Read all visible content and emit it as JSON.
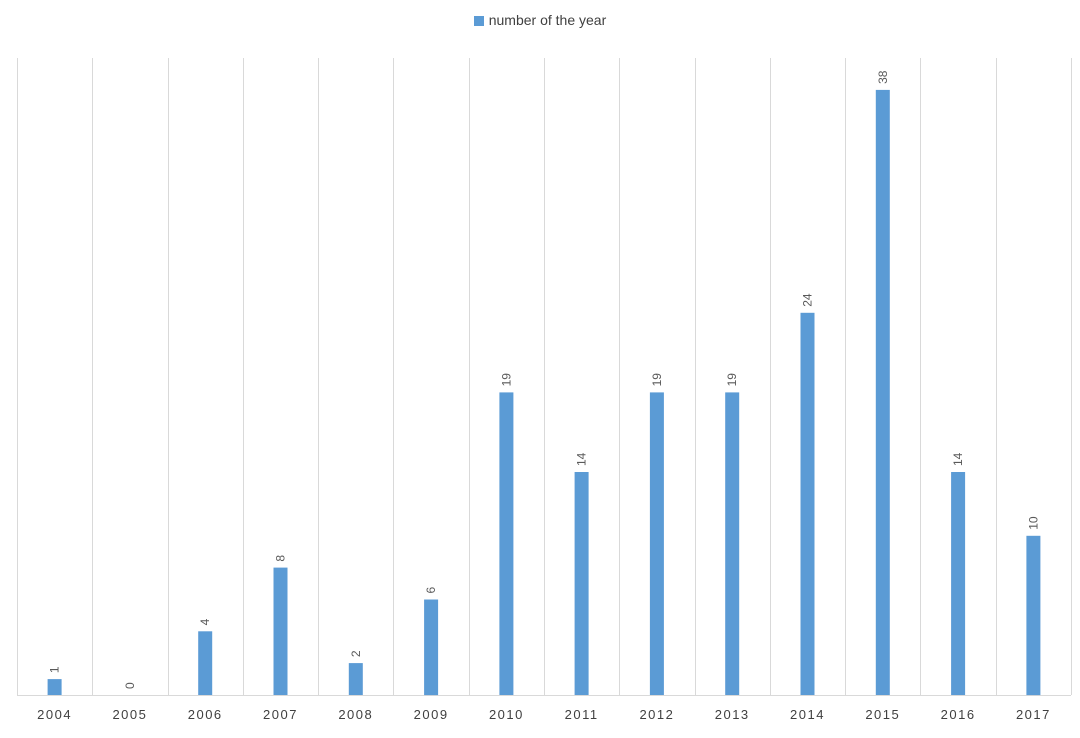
{
  "colors": {
    "bar": "#5b9bd5",
    "grid": "#d9d9d9",
    "tick_text": "#404040",
    "label_text": "#595959"
  },
  "legend": {
    "label": "number of the year"
  },
  "chart_data": {
    "type": "bar",
    "title": "",
    "xlabel": "",
    "ylabel": "",
    "categories": [
      "2004",
      "2005",
      "2006",
      "2007",
      "2008",
      "2009",
      "2010",
      "2011",
      "2012",
      "2013",
      "2014",
      "2015",
      "2016",
      "2017"
    ],
    "series": [
      {
        "name": "number of the year",
        "values": [
          1,
          0,
          4,
          8,
          2,
          6,
          19,
          14,
          19,
          19,
          24,
          38,
          14,
          10
        ]
      }
    ],
    "ylim": [
      0,
      40
    ],
    "grid": "vertical",
    "legend_position": "top",
    "data_labels": true
  }
}
